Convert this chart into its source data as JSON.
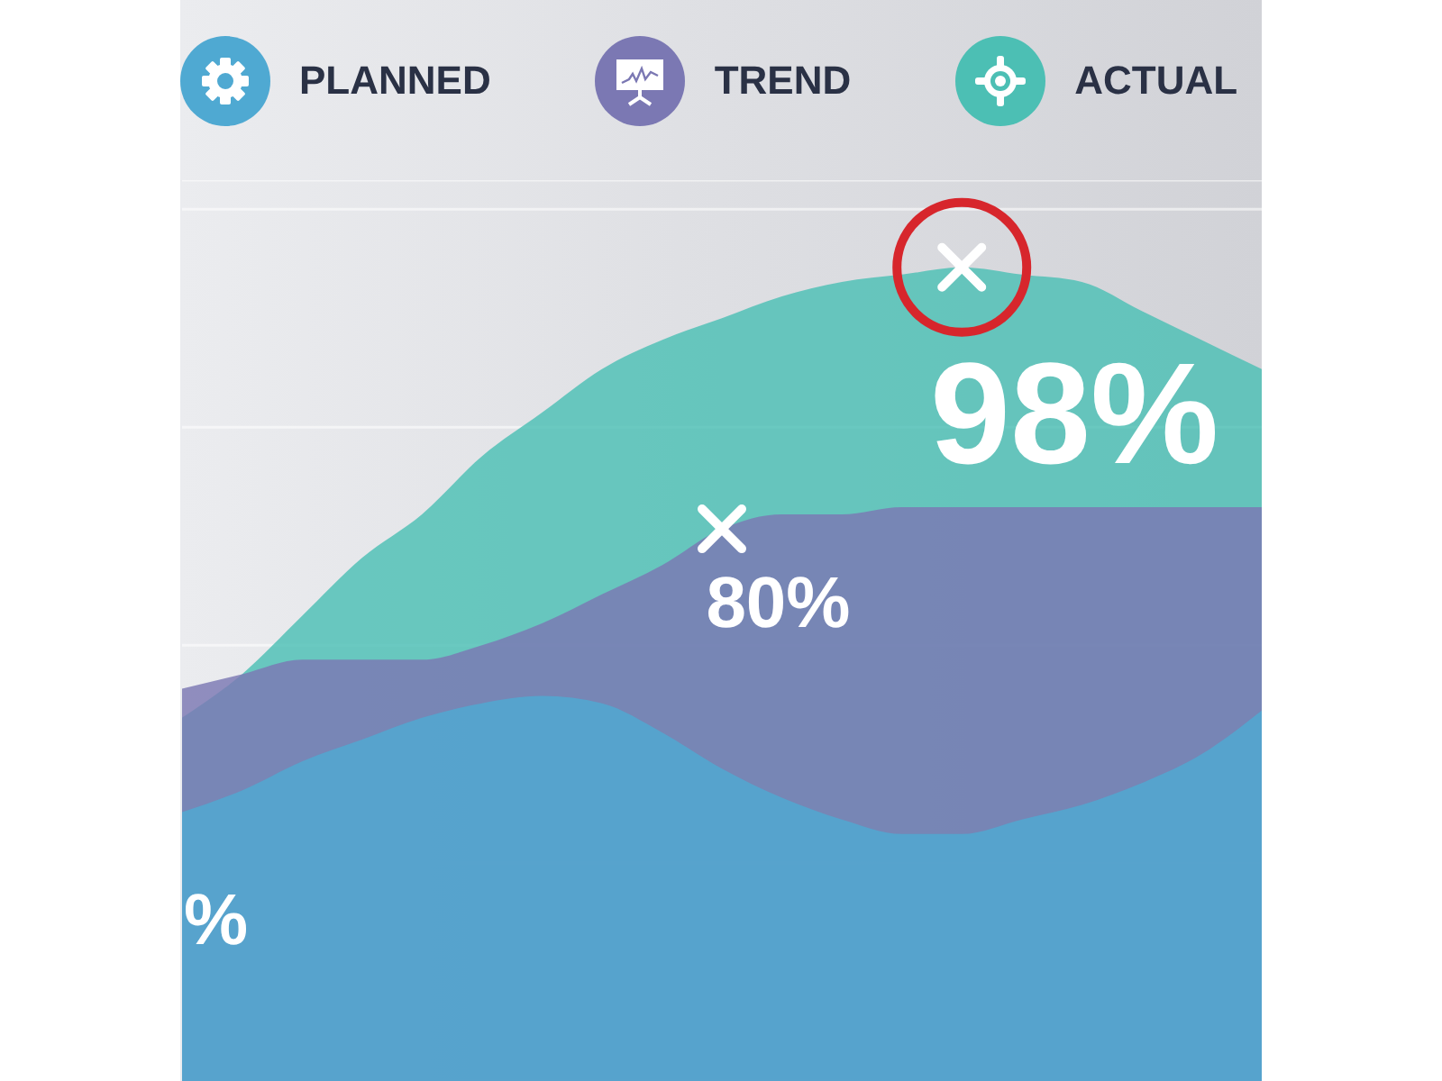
{
  "chart_data": {
    "type": "area",
    "categories": [
      null,
      null,
      null,
      null,
      null,
      null,
      null,
      null,
      null,
      null,
      null,
      null,
      null,
      null,
      null,
      null,
      null,
      null,
      null
    ],
    "series": [
      {
        "name": "PLANNED",
        "color": "#4fa9d2",
        "values": [
          60.5,
          62,
          64,
          65.5,
          67,
          68,
          68.5,
          68,
          66,
          63.5,
          61.5,
          60,
          59,
          59,
          60,
          61,
          62.5,
          64.5,
          67.5
        ]
      },
      {
        "name": "TREND",
        "color": "#7b78b3",
        "values": [
          69,
          70,
          71,
          71,
          71,
          72,
          73.5,
          75.5,
          77.5,
          80,
          81,
          81,
          81.5,
          81.5,
          81.5,
          81.5,
          81.5,
          81.5,
          81.5
        ],
        "value_labels": [
          null,
          null,
          null,
          null,
          null,
          null,
          null,
          null,
          null,
          "80%",
          null,
          null,
          null,
          null,
          null,
          null,
          null,
          null,
          null
        ]
      },
      {
        "name": "ACTUAL",
        "color": "#4cbfb4",
        "values": [
          67,
          70,
          74,
          78,
          81,
          85,
          88,
          91,
          93,
          94.5,
          96,
          97,
          97.5,
          98,
          97.5,
          97,
          95,
          93,
          91
        ],
        "value_labels": [
          null,
          null,
          null,
          null,
          null,
          null,
          null,
          null,
          null,
          null,
          null,
          null,
          null,
          "98%",
          null,
          null,
          null,
          null,
          null
        ]
      }
    ],
    "ylim": [
      42,
      104
    ],
    "annotations": [
      "%"
    ],
    "grid": "y",
    "legend": "top",
    "tick_labels": false
  }
}
